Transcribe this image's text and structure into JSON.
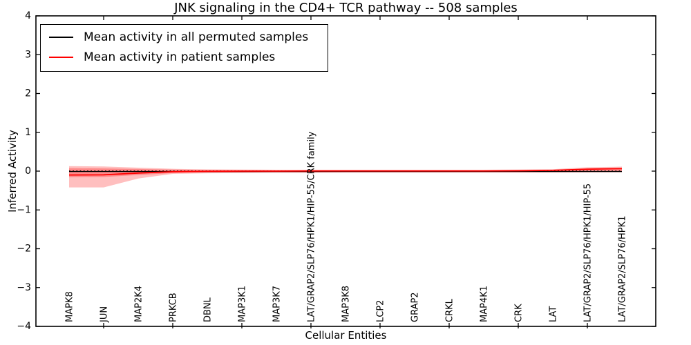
{
  "chart_data": {
    "type": "line",
    "title": "JNK signaling in the CD4+ TCR pathway -- 508 samples",
    "xlabel": "Cellular Entities",
    "ylabel": "Inferred Activity",
    "ylim": [
      -4,
      4
    ],
    "yticks": [
      4,
      3,
      2,
      1,
      0,
      -1,
      -2,
      -3,
      -4
    ],
    "grid": false,
    "legend_position": "upper left",
    "categories": [
      "MAPK8",
      "JUN",
      "MAP2K4",
      "PRKCB",
      "DBNL",
      "MAP3K1",
      "MAP3K7",
      "LAT/GRAP2/SLP76/HPK1/HIP-55/CRK family",
      "MAP3K8",
      "LCP2",
      "GRAP2",
      "CRKL",
      "MAP4K1",
      "CRK",
      "LAT",
      "LAT/GRAP2/SLP76/HPK1/HIP-55",
      "LAT/GRAP2/SLP76/HPK1"
    ],
    "series": [
      {
        "name": "Mean activity in all permuted samples",
        "color": "#000000",
        "style": "solid",
        "values": [
          -0.01,
          -0.01,
          -0.01,
          -0.01,
          -0.01,
          -0.01,
          -0.01,
          -0.01,
          -0.01,
          -0.01,
          -0.01,
          -0.01,
          -0.01,
          -0.01,
          -0.01,
          -0.01,
          -0.01
        ]
      },
      {
        "name": "Mean activity in patient samples",
        "color": "#ff0000",
        "style": "solid",
        "values": [
          -0.1,
          -0.095,
          -0.05,
          -0.015,
          -0.005,
          0.0,
          0.0,
          0.005,
          0.005,
          0.005,
          0.005,
          0.005,
          0.005,
          0.01,
          0.02,
          0.05,
          0.065
        ]
      }
    ],
    "bands": [
      {
        "name": "patient-std-outer",
        "color": "#ff0000",
        "opacity": 0.25,
        "top": [
          0.13,
          0.12,
          0.09,
          0.06,
          0.045,
          0.04,
          0.035,
          0.035,
          0.035,
          0.035,
          0.035,
          0.035,
          0.035,
          0.04,
          0.05,
          0.1,
          0.115
        ],
        "bottom": [
          -0.42,
          -0.42,
          -0.19,
          -0.07,
          -0.055,
          -0.05,
          -0.045,
          -0.045,
          -0.04,
          -0.04,
          -0.04,
          -0.04,
          -0.04,
          -0.04,
          -0.04,
          -0.035,
          -0.03
        ]
      },
      {
        "name": "patient-std-inner",
        "color": "#ff0000",
        "opacity": 0.28,
        "top": [
          0.075,
          0.07,
          0.055,
          0.04,
          0.03,
          0.025,
          0.02,
          0.02,
          0.02,
          0.02,
          0.02,
          0.02,
          0.02,
          0.025,
          0.035,
          0.065,
          0.08
        ],
        "bottom": [
          -0.155,
          -0.15,
          -0.1,
          -0.05,
          -0.035,
          -0.03,
          -0.025,
          -0.025,
          -0.02,
          -0.02,
          -0.02,
          -0.02,
          -0.02,
          -0.02,
          -0.015,
          -0.005,
          0.005
        ]
      }
    ],
    "reference_line": {
      "y": 0,
      "style": "dotted",
      "color": "#000000"
    }
  }
}
